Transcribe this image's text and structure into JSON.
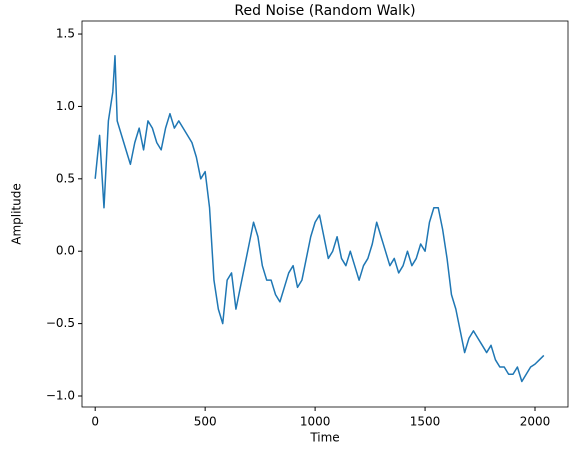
{
  "chart_data": {
    "type": "line",
    "title": "Red Noise (Random Walk)",
    "xlabel": "Time",
    "ylabel": "Amplitude",
    "x": [
      0,
      20,
      40,
      60,
      80,
      90,
      100,
      120,
      140,
      160,
      180,
      200,
      220,
      240,
      260,
      280,
      300,
      320,
      340,
      360,
      380,
      400,
      420,
      440,
      460,
      480,
      500,
      520,
      540,
      560,
      580,
      600,
      620,
      640,
      660,
      680,
      700,
      720,
      740,
      760,
      780,
      800,
      820,
      840,
      860,
      880,
      900,
      920,
      940,
      960,
      980,
      1000,
      1020,
      1040,
      1060,
      1080,
      1100,
      1120,
      1140,
      1160,
      1180,
      1200,
      1220,
      1240,
      1260,
      1280,
      1300,
      1320,
      1340,
      1360,
      1380,
      1400,
      1420,
      1440,
      1460,
      1480,
      1500,
      1520,
      1540,
      1560,
      1580,
      1600,
      1620,
      1640,
      1660,
      1680,
      1700,
      1720,
      1740,
      1760,
      1780,
      1800,
      1820,
      1840,
      1860,
      1880,
      1900,
      1920,
      1940,
      1960,
      1980,
      2000,
      2020,
      2040
    ],
    "series": [
      {
        "name": "Red noise",
        "color": "#1f77b4",
        "values": [
          0.5,
          0.8,
          0.3,
          0.9,
          1.1,
          1.35,
          0.9,
          0.8,
          0.7,
          0.6,
          0.75,
          0.85,
          0.7,
          0.9,
          0.85,
          0.75,
          0.7,
          0.85,
          0.95,
          0.85,
          0.9,
          0.85,
          0.8,
          0.75,
          0.65,
          0.5,
          0.55,
          0.3,
          -0.2,
          -0.4,
          -0.5,
          -0.2,
          -0.15,
          -0.4,
          -0.25,
          -0.1,
          0.05,
          0.2,
          0.1,
          -0.1,
          -0.2,
          -0.2,
          -0.3,
          -0.35,
          -0.25,
          -0.15,
          -0.1,
          -0.25,
          -0.2,
          -0.05,
          0.1,
          0.2,
          0.25,
          0.1,
          -0.05,
          0.0,
          0.1,
          -0.05,
          -0.1,
          0.0,
          -0.1,
          -0.2,
          -0.1,
          -0.05,
          0.05,
          0.2,
          0.1,
          0.0,
          -0.1,
          -0.05,
          -0.15,
          -0.1,
          0.0,
          -0.1,
          -0.05,
          0.05,
          0.0,
          0.2,
          0.3,
          0.3,
          0.15,
          -0.05,
          -0.3,
          -0.4,
          -0.55,
          -0.7,
          -0.6,
          -0.55,
          -0.6,
          -0.65,
          -0.7,
          -0.65,
          -0.75,
          -0.8,
          -0.8,
          -0.85,
          -0.85,
          -0.8,
          -0.9,
          -0.85,
          -0.8,
          -0.78,
          -0.75,
          -0.72
        ]
      }
    ],
    "xlim": [
      -60,
      2150
    ],
    "xticks": [
      0,
      500,
      1000,
      1500,
      2000
    ],
    "ylim": [
      -1.076,
      1.59
    ],
    "yticks": [
      {
        "value": -1.0,
        "label": "−1.0"
      },
      {
        "value": -0.5,
        "label": "−0.5"
      },
      {
        "value": 0.0,
        "label": "0.0"
      },
      0.5,
      {
        "value": 1.0,
        "label": "1.0"
      },
      1.5
    ],
    "grid": false
  }
}
